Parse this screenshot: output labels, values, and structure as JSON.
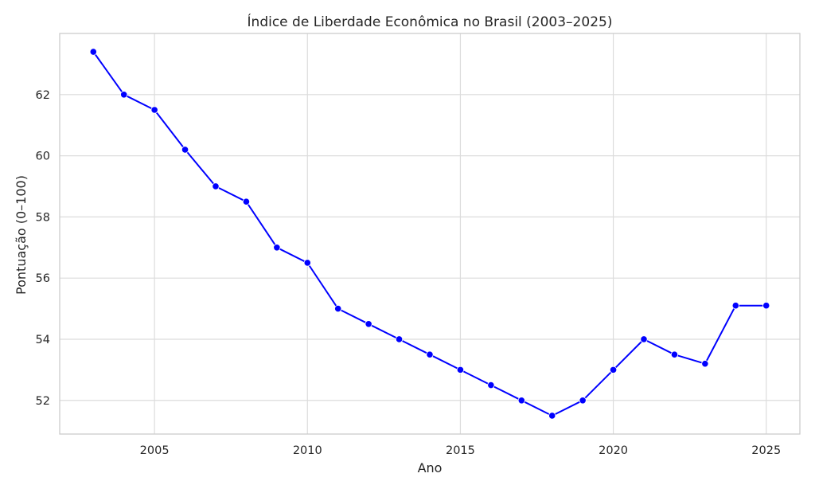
{
  "chart_data": {
    "type": "line",
    "title": "Índice de Liberdade Econômica no Brasil (2003–2025)",
    "xlabel": "Ano",
    "ylabel": "Pontuação (0–100)",
    "xlim": [
      2001.9,
      2026.1
    ],
    "ylim": [
      50.9,
      64.0
    ],
    "xticks": [
      2005,
      2010,
      2015,
      2020,
      2025
    ],
    "yticks": [
      52,
      54,
      56,
      58,
      60,
      62
    ],
    "grid": true,
    "legend": "none",
    "series": [
      {
        "color": "#0000ff",
        "marker": "circle",
        "x": [
          2003,
          2004,
          2005,
          2006,
          2007,
          2008,
          2009,
          2010,
          2011,
          2012,
          2013,
          2014,
          2015,
          2016,
          2017,
          2018,
          2019,
          2020,
          2021,
          2022,
          2023,
          2024,
          2025
        ],
        "y": [
          63.4,
          62.0,
          61.5,
          60.2,
          59.0,
          58.5,
          57.0,
          56.5,
          55.0,
          54.5,
          54.0,
          53.5,
          53.0,
          52.5,
          52.0,
          51.5,
          52.0,
          53.0,
          54.0,
          53.5,
          53.2,
          55.1,
          55.1
        ]
      }
    ]
  },
  "colors": {
    "line": "#0000ff",
    "grid": "#dcdcdc",
    "frame": "#cccccc",
    "text": "#262626"
  }
}
